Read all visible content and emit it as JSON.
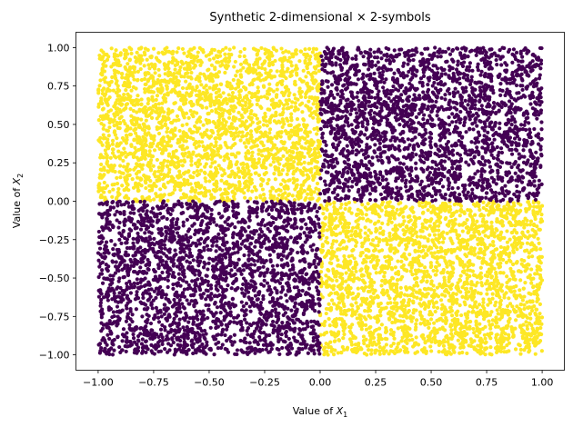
{
  "chart_data": {
    "type": "scatter",
    "title": "Synthetic 2-dimensional × 2-symbols",
    "xlabel_prefix": "Value of ",
    "xlabel_var": "X",
    "xlabel_sub": "1",
    "ylabel_prefix": "Value of ",
    "ylabel_var": "X",
    "ylabel_sub": "2",
    "xlim": [
      -1.1,
      1.1
    ],
    "ylim": [
      -1.1,
      1.1
    ],
    "xticks": [
      -1.0,
      -0.75,
      -0.5,
      -0.25,
      0.0,
      0.25,
      0.5,
      0.75,
      1.0
    ],
    "xtick_labels": [
      "−1.00",
      "−0.75",
      "−0.50",
      "−0.25",
      "0.00",
      "0.25",
      "0.50",
      "0.75",
      "1.00"
    ],
    "yticks": [
      -1.0,
      -0.75,
      -0.5,
      -0.25,
      0.0,
      0.25,
      0.5,
      0.75,
      1.0
    ],
    "ytick_labels": [
      "−1.00",
      "−0.75",
      "−0.50",
      "−0.25",
      "0.00",
      "0.25",
      "0.50",
      "0.75",
      "1.00"
    ],
    "grid": false,
    "series": [
      {
        "color": "#fde725",
        "regions": [
          {
            "x": [
              -1.0,
              0.0
            ],
            "y": [
              0.0,
              1.0
            ],
            "count": 2500
          },
          {
            "x": [
              0.0,
              1.0
            ],
            "y": [
              -1.0,
              0.0
            ],
            "count": 2500
          }
        ]
      },
      {
        "color": "#440154",
        "regions": [
          {
            "x": [
              0.0,
              1.0
            ],
            "y": [
              0.0,
              1.0
            ],
            "count": 2500
          },
          {
            "x": [
              -1.0,
              0.0
            ],
            "y": [
              -1.0,
              0.0
            ],
            "count": 2500
          }
        ]
      }
    ]
  }
}
